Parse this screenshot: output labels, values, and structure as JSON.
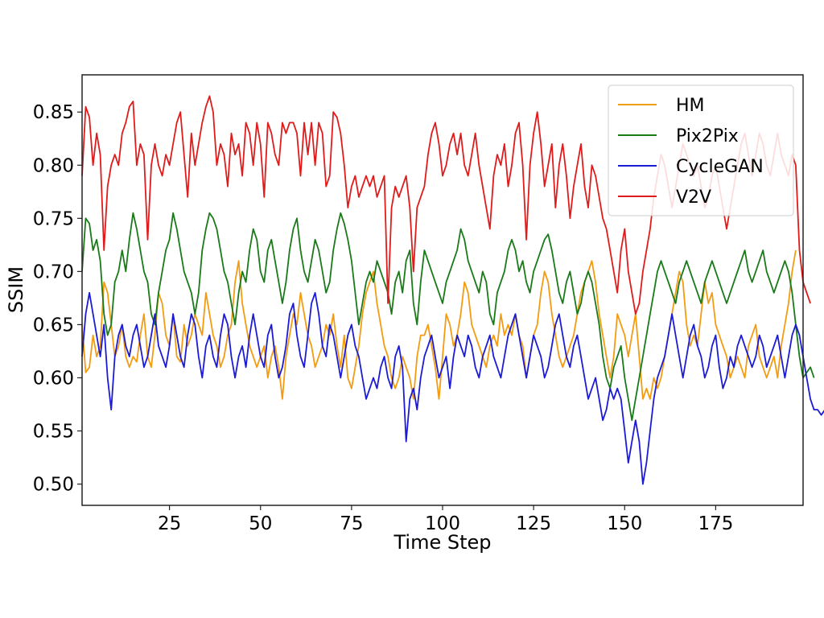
{
  "chart_data": {
    "type": "line",
    "title": "",
    "xlabel": "Time Step",
    "ylabel": "SSIM",
    "xlim": [
      1,
      199
    ],
    "ylim": [
      0.48,
      0.885
    ],
    "xticks": [
      25,
      50,
      75,
      100,
      125,
      150,
      175
    ],
    "yticks": [
      0.5,
      0.55,
      0.6,
      0.65,
      0.7,
      0.75,
      0.8,
      0.85
    ],
    "grid": false,
    "legend_position": "top-right",
    "series": [
      {
        "name": "HM",
        "color": "#f39c12",
        "values": [
          0.65,
          0.605,
          0.61,
          0.64,
          0.62,
          0.63,
          0.69,
          0.68,
          0.65,
          0.62,
          0.63,
          0.65,
          0.62,
          0.61,
          0.62,
          0.615,
          0.64,
          0.66,
          0.62,
          0.61,
          0.64,
          0.68,
          0.67,
          0.64,
          0.63,
          0.66,
          0.62,
          0.615,
          0.65,
          0.63,
          0.64,
          0.66,
          0.65,
          0.64,
          0.68,
          0.66,
          0.64,
          0.63,
          0.61,
          0.62,
          0.64,
          0.65,
          0.69,
          0.71,
          0.67,
          0.65,
          0.63,
          0.62,
          0.61,
          0.62,
          0.63,
          0.6,
          0.62,
          0.63,
          0.61,
          0.58,
          0.62,
          0.64,
          0.66,
          0.65,
          0.68,
          0.66,
          0.64,
          0.63,
          0.61,
          0.62,
          0.63,
          0.65,
          0.64,
          0.66,
          0.63,
          0.61,
          0.64,
          0.6,
          0.59,
          0.61,
          0.63,
          0.66,
          0.68,
          0.69,
          0.7,
          0.67,
          0.65,
          0.63,
          0.62,
          0.6,
          0.59,
          0.6,
          0.62,
          0.61,
          0.6,
          0.58,
          0.62,
          0.64,
          0.64,
          0.65,
          0.63,
          0.61,
          0.58,
          0.62,
          0.66,
          0.65,
          0.63,
          0.64,
          0.66,
          0.69,
          0.68,
          0.65,
          0.64,
          0.63,
          0.62,
          0.61,
          0.63,
          0.64,
          0.63,
          0.66,
          0.64,
          0.65,
          0.64,
          0.66,
          0.64,
          0.63,
          0.6,
          0.62,
          0.64,
          0.65,
          0.68,
          0.7,
          0.69,
          0.66,
          0.64,
          0.62,
          0.61,
          0.62,
          0.63,
          0.64,
          0.66,
          0.68,
          0.69,
          0.7,
          0.71,
          0.69,
          0.66,
          0.64,
          0.62,
          0.6,
          0.62,
          0.66,
          0.65,
          0.64,
          0.62,
          0.64,
          0.66,
          0.62,
          0.58,
          0.59,
          0.58,
          0.6,
          0.59,
          0.6,
          0.62,
          0.64,
          0.66,
          0.68,
          0.7,
          0.69,
          0.65,
          0.63,
          0.64,
          0.63,
          0.66,
          0.69,
          0.67,
          0.68,
          0.65,
          0.64,
          0.63,
          0.62,
          0.6,
          0.61,
          0.62,
          0.61,
          0.6,
          0.63,
          0.64,
          0.65,
          0.62,
          0.61,
          0.6,
          0.61,
          0.62,
          0.6,
          0.63,
          0.65,
          0.67,
          0.7,
          0.72
        ]
      },
      {
        "name": "Pix2Pix",
        "color": "#1a7a1a",
        "values": [
          0.7,
          0.75,
          0.745,
          0.72,
          0.73,
          0.71,
          0.66,
          0.64,
          0.65,
          0.69,
          0.7,
          0.72,
          0.7,
          0.73,
          0.755,
          0.74,
          0.72,
          0.7,
          0.69,
          0.66,
          0.65,
          0.68,
          0.7,
          0.72,
          0.73,
          0.755,
          0.74,
          0.72,
          0.7,
          0.69,
          0.68,
          0.66,
          0.68,
          0.72,
          0.74,
          0.755,
          0.75,
          0.74,
          0.72,
          0.7,
          0.69,
          0.67,
          0.65,
          0.68,
          0.7,
          0.69,
          0.72,
          0.74,
          0.73,
          0.7,
          0.69,
          0.72,
          0.73,
          0.71,
          0.69,
          0.67,
          0.69,
          0.72,
          0.74,
          0.75,
          0.72,
          0.7,
          0.69,
          0.71,
          0.73,
          0.72,
          0.7,
          0.68,
          0.69,
          0.72,
          0.74,
          0.755,
          0.745,
          0.73,
          0.71,
          0.68,
          0.65,
          0.67,
          0.69,
          0.7,
          0.69,
          0.71,
          0.7,
          0.69,
          0.68,
          0.66,
          0.69,
          0.7,
          0.68,
          0.71,
          0.72,
          0.67,
          0.65,
          0.69,
          0.72,
          0.71,
          0.7,
          0.69,
          0.68,
          0.67,
          0.69,
          0.7,
          0.71,
          0.72,
          0.74,
          0.73,
          0.71,
          0.7,
          0.69,
          0.68,
          0.7,
          0.69,
          0.66,
          0.65,
          0.68,
          0.69,
          0.7,
          0.72,
          0.73,
          0.72,
          0.7,
          0.71,
          0.69,
          0.68,
          0.7,
          0.71,
          0.72,
          0.73,
          0.735,
          0.72,
          0.7,
          0.68,
          0.67,
          0.69,
          0.7,
          0.68,
          0.66,
          0.67,
          0.69,
          0.7,
          0.69,
          0.67,
          0.65,
          0.62,
          0.6,
          0.59,
          0.61,
          0.62,
          0.63,
          0.6,
          0.58,
          0.56,
          0.58,
          0.6,
          0.62,
          0.64,
          0.66,
          0.68,
          0.7,
          0.71,
          0.7,
          0.69,
          0.68,
          0.67,
          0.69,
          0.7,
          0.71,
          0.7,
          0.69,
          0.68,
          0.67,
          0.69,
          0.7,
          0.71,
          0.7,
          0.69,
          0.68,
          0.67,
          0.68,
          0.69,
          0.7,
          0.71,
          0.72,
          0.7,
          0.69,
          0.7,
          0.71,
          0.72,
          0.7,
          0.69,
          0.68,
          0.69,
          0.7,
          0.71,
          0.7,
          0.68,
          0.65,
          0.62,
          0.6,
          0.605,
          0.61,
          0.6
        ]
      },
      {
        "name": "CycleGAN",
        "color": "#1b1bd6",
        "values": [
          0.62,
          0.66,
          0.68,
          0.66,
          0.64,
          0.62,
          0.65,
          0.6,
          0.57,
          0.62,
          0.64,
          0.65,
          0.63,
          0.62,
          0.64,
          0.65,
          0.63,
          0.61,
          0.62,
          0.64,
          0.66,
          0.63,
          0.62,
          0.61,
          0.63,
          0.66,
          0.64,
          0.62,
          0.61,
          0.64,
          0.66,
          0.65,
          0.62,
          0.6,
          0.63,
          0.64,
          0.62,
          0.61,
          0.64,
          0.66,
          0.65,
          0.62,
          0.6,
          0.62,
          0.63,
          0.61,
          0.64,
          0.66,
          0.64,
          0.62,
          0.61,
          0.64,
          0.65,
          0.62,
          0.6,
          0.61,
          0.63,
          0.66,
          0.67,
          0.64,
          0.62,
          0.61,
          0.64,
          0.67,
          0.68,
          0.66,
          0.63,
          0.62,
          0.65,
          0.64,
          0.62,
          0.6,
          0.62,
          0.64,
          0.65,
          0.63,
          0.62,
          0.6,
          0.58,
          0.59,
          0.6,
          0.59,
          0.61,
          0.62,
          0.6,
          0.59,
          0.62,
          0.63,
          0.61,
          0.54,
          0.58,
          0.59,
          0.57,
          0.6,
          0.62,
          0.63,
          0.64,
          0.62,
          0.6,
          0.61,
          0.62,
          0.59,
          0.62,
          0.64,
          0.63,
          0.62,
          0.64,
          0.63,
          0.61,
          0.6,
          0.62,
          0.63,
          0.64,
          0.62,
          0.61,
          0.6,
          0.62,
          0.64,
          0.65,
          0.66,
          0.64,
          0.62,
          0.6,
          0.62,
          0.64,
          0.63,
          0.62,
          0.6,
          0.61,
          0.63,
          0.65,
          0.66,
          0.64,
          0.62,
          0.61,
          0.63,
          0.64,
          0.62,
          0.6,
          0.58,
          0.59,
          0.6,
          0.58,
          0.56,
          0.57,
          0.59,
          0.58,
          0.59,
          0.58,
          0.55,
          0.52,
          0.54,
          0.56,
          0.54,
          0.5,
          0.52,
          0.55,
          0.58,
          0.6,
          0.61,
          0.62,
          0.64,
          0.66,
          0.64,
          0.62,
          0.6,
          0.62,
          0.64,
          0.65,
          0.63,
          0.62,
          0.6,
          0.61,
          0.63,
          0.64,
          0.61,
          0.59,
          0.6,
          0.62,
          0.61,
          0.63,
          0.64,
          0.63,
          0.62,
          0.61,
          0.62,
          0.64,
          0.63,
          0.61,
          0.62,
          0.63,
          0.64,
          0.62,
          0.6,
          0.62,
          0.64,
          0.65,
          0.64,
          0.62,
          0.6,
          0.58,
          0.57,
          0.57,
          0.565,
          0.57
        ]
      },
      {
        "name": "V2V",
        "color": "#e01b1b",
        "values": [
          0.79,
          0.855,
          0.845,
          0.8,
          0.83,
          0.81,
          0.72,
          0.78,
          0.8,
          0.81,
          0.8,
          0.83,
          0.84,
          0.855,
          0.86,
          0.8,
          0.82,
          0.81,
          0.73,
          0.8,
          0.82,
          0.8,
          0.79,
          0.81,
          0.8,
          0.82,
          0.84,
          0.85,
          0.81,
          0.77,
          0.83,
          0.8,
          0.82,
          0.84,
          0.855,
          0.865,
          0.85,
          0.8,
          0.82,
          0.81,
          0.78,
          0.83,
          0.81,
          0.82,
          0.79,
          0.84,
          0.83,
          0.8,
          0.84,
          0.82,
          0.77,
          0.84,
          0.83,
          0.81,
          0.8,
          0.84,
          0.83,
          0.84,
          0.84,
          0.83,
          0.79,
          0.84,
          0.81,
          0.84,
          0.8,
          0.84,
          0.83,
          0.78,
          0.79,
          0.85,
          0.845,
          0.83,
          0.8,
          0.76,
          0.78,
          0.79,
          0.77,
          0.78,
          0.79,
          0.78,
          0.79,
          0.77,
          0.78,
          0.79,
          0.67,
          0.76,
          0.78,
          0.77,
          0.78,
          0.79,
          0.76,
          0.7,
          0.76,
          0.77,
          0.78,
          0.81,
          0.83,
          0.84,
          0.82,
          0.79,
          0.8,
          0.82,
          0.83,
          0.81,
          0.83,
          0.8,
          0.79,
          0.81,
          0.83,
          0.8,
          0.78,
          0.76,
          0.74,
          0.79,
          0.81,
          0.8,
          0.82,
          0.78,
          0.8,
          0.83,
          0.84,
          0.8,
          0.73,
          0.8,
          0.83,
          0.85,
          0.82,
          0.78,
          0.8,
          0.82,
          0.76,
          0.8,
          0.82,
          0.79,
          0.75,
          0.78,
          0.8,
          0.82,
          0.78,
          0.76,
          0.8,
          0.79,
          0.77,
          0.75,
          0.74,
          0.72,
          0.7,
          0.68,
          0.72,
          0.74,
          0.7,
          0.68,
          0.66,
          0.67,
          0.7,
          0.72,
          0.74,
          0.77,
          0.79,
          0.81,
          0.8,
          0.78,
          0.76,
          0.78,
          0.8,
          0.82,
          0.81,
          0.8,
          0.79,
          0.8,
          0.78,
          0.76,
          0.77,
          0.79,
          0.8,
          0.78,
          0.76,
          0.74,
          0.76,
          0.78,
          0.8,
          0.82,
          0.83,
          0.81,
          0.79,
          0.81,
          0.83,
          0.82,
          0.8,
          0.79,
          0.81,
          0.83,
          0.81,
          0.8,
          0.79,
          0.81,
          0.8,
          0.72,
          0.69,
          0.68,
          0.67
        ]
      }
    ]
  }
}
